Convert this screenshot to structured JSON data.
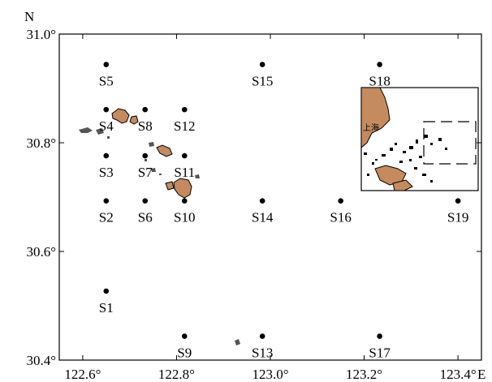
{
  "map": {
    "lon_range": [
      122.55,
      123.45
    ],
    "lat_range": [
      30.4,
      31.0
    ],
    "x_ticks": [
      {
        "value": 122.6,
        "label": "122.6°"
      },
      {
        "value": 122.8,
        "label": "122.8°"
      },
      {
        "value": 123.0,
        "label": "123.0°"
      },
      {
        "value": 123.2,
        "label": "123.2°"
      },
      {
        "value": 123.4,
        "label": "123.4°"
      }
    ],
    "y_ticks": [
      {
        "value": 31.0,
        "label": "31.0°"
      },
      {
        "value": 30.8,
        "label": "30.8°"
      },
      {
        "value": 30.6,
        "label": "30.6°"
      },
      {
        "value": 30.4,
        "label": "30.4°"
      }
    ],
    "north_label": "N",
    "east_label": "E",
    "land_color": "#c58b5e",
    "stations": [
      {
        "id": "S1",
        "lon": 122.65,
        "lat": 30.527
      },
      {
        "id": "S2",
        "lon": 122.65,
        "lat": 30.693
      },
      {
        "id": "S3",
        "lon": 122.65,
        "lat": 30.776
      },
      {
        "id": "S4",
        "lon": 122.65,
        "lat": 30.861
      },
      {
        "id": "S5",
        "lon": 122.65,
        "lat": 30.944
      },
      {
        "id": "S6",
        "lon": 122.733,
        "lat": 30.693
      },
      {
        "id": "S7",
        "lon": 122.733,
        "lat": 30.776
      },
      {
        "id": "S8",
        "lon": 122.733,
        "lat": 30.861
      },
      {
        "id": "S9",
        "lon": 122.817,
        "lat": 30.444
      },
      {
        "id": "S10",
        "lon": 122.817,
        "lat": 30.693
      },
      {
        "id": "S11",
        "lon": 122.817,
        "lat": 30.776
      },
      {
        "id": "S12",
        "lon": 122.817,
        "lat": 30.861
      },
      {
        "id": "S13",
        "lon": 122.983,
        "lat": 30.444
      },
      {
        "id": "S14",
        "lon": 122.983,
        "lat": 30.693
      },
      {
        "id": "S15",
        "lon": 122.983,
        "lat": 30.944
      },
      {
        "id": "S16",
        "lon": 123.15,
        "lat": 30.693
      },
      {
        "id": "S17",
        "lon": 123.233,
        "lat": 30.444
      },
      {
        "id": "S18",
        "lon": 123.233,
        "lat": 30.944
      },
      {
        "id": "S19",
        "lon": 123.4,
        "lat": 30.693
      }
    ],
    "inset": {
      "city_label": "上海"
    }
  }
}
